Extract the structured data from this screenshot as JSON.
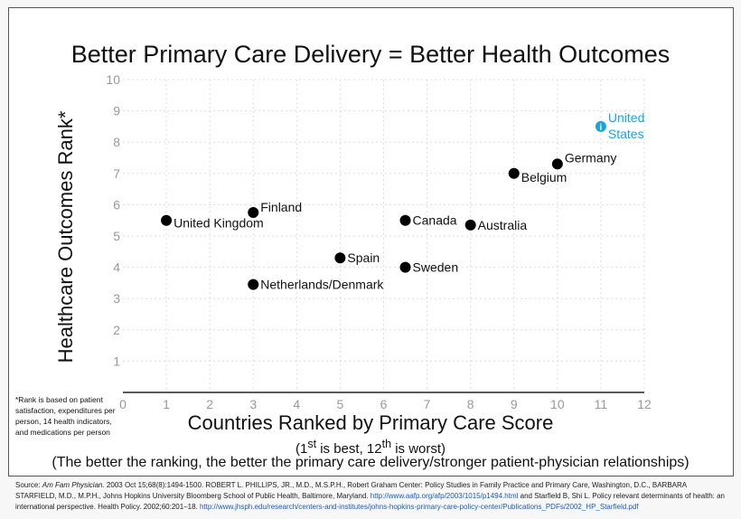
{
  "chart_data": {
    "type": "scatter",
    "title": "Better Primary Care Delivery = Better Health Outcomes",
    "xlabel": "Countries Ranked by Primary Care Score",
    "ylabel": "Healthcare Outcomes Rank*",
    "xlim": [
      0,
      12
    ],
    "ylim": [
      0,
      10
    ],
    "xticks": [
      0,
      1,
      2,
      3,
      4,
      5,
      6,
      7,
      8,
      9,
      10,
      11,
      12
    ],
    "yticks": [
      1,
      2,
      3,
      4,
      5,
      6,
      7,
      8,
      9,
      10
    ],
    "grid": true,
    "points": [
      {
        "label": "United Kingdom",
        "x": 1,
        "y": 5.5,
        "color": "#000000"
      },
      {
        "label": "Finland",
        "x": 3,
        "y": 5.75,
        "color": "#000000"
      },
      {
        "label": "Netherlands/Denmark",
        "x": 3,
        "y": 3.45,
        "color": "#000000"
      },
      {
        "label": "Spain",
        "x": 5,
        "y": 4.3,
        "color": "#000000"
      },
      {
        "label": "Canada",
        "x": 6.5,
        "y": 5.5,
        "color": "#000000"
      },
      {
        "label": "Sweden",
        "x": 6.5,
        "y": 4.0,
        "color": "#000000"
      },
      {
        "label": "Australia",
        "x": 8,
        "y": 5.35,
        "color": "#000000"
      },
      {
        "label": "Belgium",
        "x": 9,
        "y": 7.0,
        "color": "#000000"
      },
      {
        "label": "Germany",
        "x": 10,
        "y": 7.3,
        "color": "#000000"
      },
      {
        "label": "United States",
        "x": 11,
        "y": 8.5,
        "color": "#1aa3e0"
      }
    ]
  },
  "subtitle_parts": {
    "a": "(1",
    "a_sup": "st",
    "b": " is best, 12",
    "b_sup": "th",
    "c": " is worst)"
  },
  "note": "(The better the ranking, the better the primary care delivery/stronger patient-physician relationships)",
  "footnote": "*Rank is based on patient satisfaction, expenditures per person, 14 health indicators, and medications per person",
  "source": {
    "prefix": "Source: ",
    "journal": "Am Fam Physician.",
    "text1": " 2003 Oct 15;68(8):1494-1500. ROBERT L. PHILLIPS, JR., M.D., M.S.P.H., Robert Graham Center: Policy Studies in Family Practice and Primary Care, Washington, D.C., BARBARA STARFIELD, M.D., M.P.H., Johns Hopkins University Bloomberg School of Public Health, Baltimore, Maryland. ",
    "link1": "http://www.aafp.org/afp/2003/1015/p1494.html",
    "text2": " and Starfield B, Shi L. Policy relevant determinants of health: an international perspective. Health Policy. 2002;60:201–18. ",
    "link2": "http://www.jhsph.edu/research/centers-and-institutes/johns-hopkins-primary-care-policy-center/Publications_PDFs/2002_HP_Starfield.pdf"
  }
}
